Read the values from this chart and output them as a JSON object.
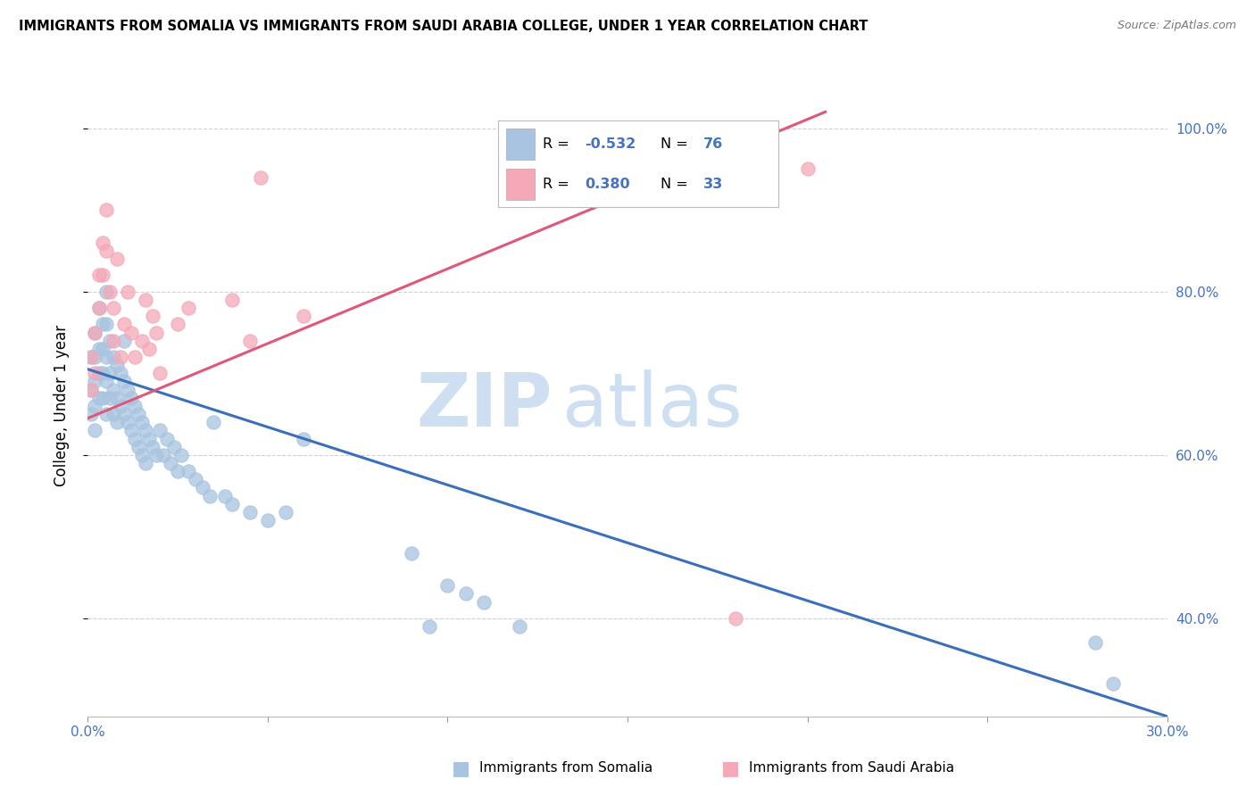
{
  "title": "IMMIGRANTS FROM SOMALIA VS IMMIGRANTS FROM SAUDI ARABIA COLLEGE, UNDER 1 YEAR CORRELATION CHART",
  "source": "Source: ZipAtlas.com",
  "ylabel": "College, Under 1 year",
  "somalia_color": "#a8c4e0",
  "saudi_color": "#f4a8b8",
  "somalia_line_color": "#3a6fba",
  "saudi_line_color": "#e05878",
  "watermark_zip": "ZIP",
  "watermark_atlas": "atlas",
  "xlim": [
    0.0,
    0.3
  ],
  "ylim": [
    0.28,
    1.04
  ],
  "yticks": [
    0.4,
    0.6,
    0.8,
    1.0
  ],
  "xticks": [
    0.0,
    0.05,
    0.1,
    0.15,
    0.2,
    0.25,
    0.3
  ],
  "somalia_trend_x": [
    0.0,
    0.3
  ],
  "somalia_trend_y": [
    0.705,
    0.28
  ],
  "saudi_trend_x": [
    0.0,
    0.205
  ],
  "saudi_trend_y": [
    0.645,
    1.02
  ],
  "somalia_x": [
    0.001,
    0.001,
    0.001,
    0.002,
    0.002,
    0.002,
    0.002,
    0.002,
    0.003,
    0.003,
    0.003,
    0.003,
    0.004,
    0.004,
    0.004,
    0.004,
    0.005,
    0.005,
    0.005,
    0.005,
    0.005,
    0.006,
    0.006,
    0.006,
    0.007,
    0.007,
    0.007,
    0.008,
    0.008,
    0.008,
    0.009,
    0.009,
    0.01,
    0.01,
    0.01,
    0.011,
    0.011,
    0.012,
    0.012,
    0.013,
    0.013,
    0.014,
    0.014,
    0.015,
    0.015,
    0.016,
    0.016,
    0.017,
    0.018,
    0.019,
    0.02,
    0.021,
    0.022,
    0.023,
    0.024,
    0.025,
    0.026,
    0.028,
    0.03,
    0.032,
    0.034,
    0.035,
    0.038,
    0.04,
    0.045,
    0.05,
    0.055,
    0.06,
    0.09,
    0.095,
    0.1,
    0.105,
    0.11,
    0.12,
    0.28,
    0.285
  ],
  "somalia_y": [
    0.72,
    0.68,
    0.65,
    0.75,
    0.72,
    0.69,
    0.66,
    0.63,
    0.78,
    0.73,
    0.7,
    0.67,
    0.76,
    0.73,
    0.7,
    0.67,
    0.8,
    0.76,
    0.72,
    0.69,
    0.65,
    0.74,
    0.7,
    0.67,
    0.72,
    0.68,
    0.65,
    0.71,
    0.67,
    0.64,
    0.7,
    0.66,
    0.74,
    0.69,
    0.65,
    0.68,
    0.64,
    0.67,
    0.63,
    0.66,
    0.62,
    0.65,
    0.61,
    0.64,
    0.6,
    0.63,
    0.59,
    0.62,
    0.61,
    0.6,
    0.63,
    0.6,
    0.62,
    0.59,
    0.61,
    0.58,
    0.6,
    0.58,
    0.57,
    0.56,
    0.55,
    0.64,
    0.55,
    0.54,
    0.53,
    0.52,
    0.53,
    0.62,
    0.48,
    0.39,
    0.44,
    0.43,
    0.42,
    0.39,
    0.37,
    0.32
  ],
  "saudi_x": [
    0.001,
    0.001,
    0.002,
    0.002,
    0.003,
    0.003,
    0.004,
    0.004,
    0.005,
    0.005,
    0.006,
    0.007,
    0.007,
    0.008,
    0.009,
    0.01,
    0.011,
    0.012,
    0.013,
    0.015,
    0.016,
    0.017,
    0.018,
    0.019,
    0.02,
    0.025,
    0.028,
    0.04,
    0.045,
    0.048,
    0.06,
    0.18,
    0.2
  ],
  "saudi_y": [
    0.72,
    0.68,
    0.75,
    0.7,
    0.82,
    0.78,
    0.86,
    0.82,
    0.9,
    0.85,
    0.8,
    0.78,
    0.74,
    0.84,
    0.72,
    0.76,
    0.8,
    0.75,
    0.72,
    0.74,
    0.79,
    0.73,
    0.77,
    0.75,
    0.7,
    0.76,
    0.78,
    0.79,
    0.74,
    0.94,
    0.77,
    0.4,
    0.95
  ]
}
